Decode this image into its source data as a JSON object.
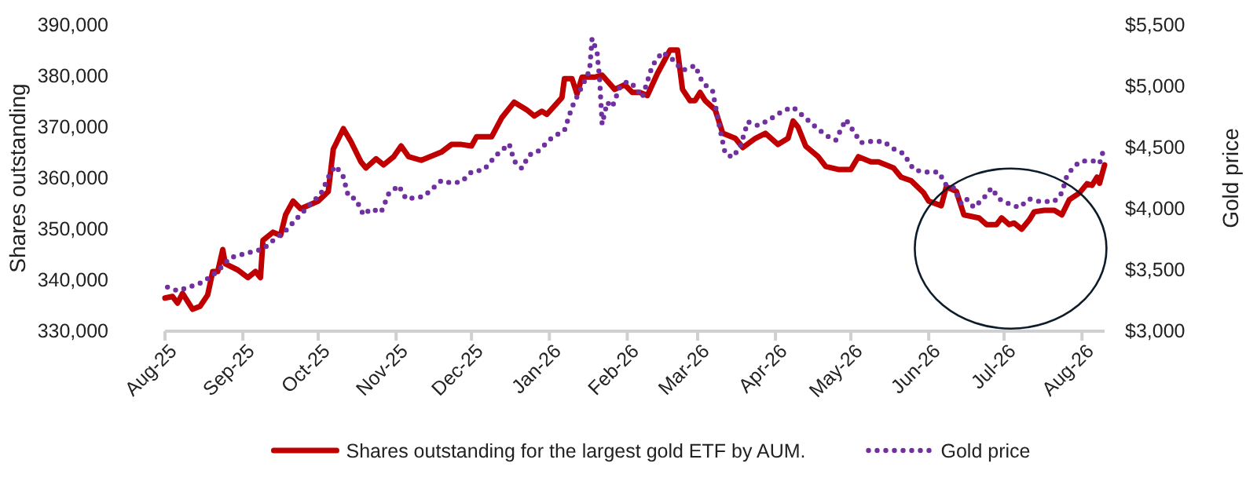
{
  "chart_data": {
    "type": "line",
    "ylabel": "Shares outstanding",
    "y2label": "Gold price",
    "xlim": [
      "2025-08-01",
      "2026-08-10"
    ],
    "xticks": [
      {
        "value": "2025-08-01",
        "label": "Aug-25"
      },
      {
        "value": "2025-09-01",
        "label": "Sep-25"
      },
      {
        "value": "2025-10-01",
        "label": "Oct-25"
      },
      {
        "value": "2025-11-01",
        "label": "Nov-25"
      },
      {
        "value": "2025-12-01",
        "label": "Dec-25"
      },
      {
        "value": "2026-01-01",
        "label": "Jan-26"
      },
      {
        "value": "2026-02-01",
        "label": "Feb-26"
      },
      {
        "value": "2026-03-01",
        "label": "Mar-26"
      },
      {
        "value": "2026-04-01",
        "label": "Apr-26"
      },
      {
        "value": "2026-05-01",
        "label": "May-26"
      },
      {
        "value": "2026-06-01",
        "label": "Jun-26"
      },
      {
        "value": "2026-07-01",
        "label": "Jul-26"
      },
      {
        "value": "2026-08-01",
        "label": "Aug-26"
      }
    ],
    "ylim": [
      330000,
      390000
    ],
    "yticks": [
      {
        "value": 330000,
        "label": "330,000"
      },
      {
        "value": 340000,
        "label": "340,000"
      },
      {
        "value": 350000,
        "label": "350,000"
      },
      {
        "value": 360000,
        "label": "360,000"
      },
      {
        "value": 370000,
        "label": "370,000"
      },
      {
        "value": 380000,
        "label": "380,000"
      },
      {
        "value": 390000,
        "label": "390,000"
      }
    ],
    "y2lim": [
      3000,
      5500
    ],
    "y2ticks": [
      {
        "value": 3000,
        "label": "$3,000"
      },
      {
        "value": 3500,
        "label": "$3,500"
      },
      {
        "value": 4000,
        "label": "$4,000"
      },
      {
        "value": 4500,
        "label": "$4,500"
      },
      {
        "value": 5000,
        "label": "$5,000"
      },
      {
        "value": 5500,
        "label": "$5,500"
      }
    ],
    "grid": false,
    "legend": "bottom",
    "series": [
      {
        "name": "Shares outstanding for the largest gold ETF by AUM.",
        "color": "#c00000",
        "line_style": "solid",
        "marker": "none",
        "x": [
          "2025-08-01",
          "2025-08-04",
          "2025-08-06",
          "2025-08-08",
          "2025-08-12",
          "2025-08-15",
          "2025-08-18",
          "2025-08-20",
          "2025-08-22",
          "2025-08-24",
          "2025-08-25",
          "2025-08-30",
          "2025-09-03",
          "2025-09-06",
          "2025-09-08",
          "2025-09-09",
          "2025-09-13",
          "2025-09-16",
          "2025-09-18",
          "2025-09-21",
          "2025-09-24",
          "2025-10-01",
          "2025-10-05",
          "2025-10-07",
          "2025-10-11",
          "2025-10-14",
          "2025-10-18",
          "2025-10-20",
          "2025-10-24",
          "2025-10-27",
          "2025-10-31",
          "2025-11-03",
          "2025-11-06",
          "2025-11-11",
          "2025-11-19",
          "2025-11-23",
          "2025-11-27",
          "2025-12-01",
          "2025-12-03",
          "2025-12-09",
          "2025-12-13",
          "2025-12-18",
          "2025-12-23",
          "2025-12-26",
          "2025-12-29",
          "2025-12-31",
          "2026-01-06",
          "2026-01-07",
          "2026-01-10",
          "2026-01-12",
          "2026-01-14",
          "2026-01-19",
          "2026-01-22",
          "2026-01-27",
          "2026-01-31",
          "2026-02-03",
          "2026-02-06",
          "2026-02-09",
          "2026-02-13",
          "2026-02-18",
          "2026-02-21",
          "2026-02-23",
          "2026-02-26",
          "2026-02-28",
          "2026-03-02",
          "2026-03-04",
          "2026-03-08",
          "2026-03-11",
          "2026-03-16",
          "2026-03-19",
          "2026-03-24",
          "2026-03-28",
          "2026-04-02",
          "2026-04-06",
          "2026-04-08",
          "2026-04-10",
          "2026-04-13",
          "2026-04-18",
          "2026-04-21",
          "2026-04-26",
          "2026-05-01",
          "2026-05-04",
          "2026-05-09",
          "2026-05-12",
          "2026-05-18",
          "2026-05-21",
          "2026-05-25",
          "2026-05-30",
          "2026-06-01",
          "2026-06-06",
          "2026-06-08",
          "2026-06-12",
          "2026-06-15",
          "2026-06-21",
          "2026-06-24",
          "2026-06-28",
          "2026-06-30",
          "2026-07-03",
          "2026-07-05",
          "2026-07-08",
          "2026-07-11",
          "2026-07-13",
          "2026-07-17",
          "2026-07-21",
          "2026-07-24",
          "2026-07-27",
          "2026-07-31",
          "2026-08-03",
          "2026-08-05",
          "2026-08-07",
          "2026-08-08",
          "2026-08-10"
        ],
        "values": [
          336500,
          336800,
          335500,
          337400,
          334300,
          334900,
          337100,
          341700,
          341700,
          346000,
          343200,
          342000,
          340500,
          341700,
          340500,
          347800,
          349400,
          348800,
          352800,
          355500,
          354000,
          355500,
          357400,
          365700,
          369700,
          367200,
          363200,
          362000,
          363800,
          362600,
          364200,
          366300,
          364200,
          363500,
          365100,
          366600,
          366600,
          366300,
          368100,
          368100,
          371800,
          374900,
          373400,
          372200,
          373100,
          372500,
          375800,
          379500,
          379500,
          376500,
          379800,
          379800,
          380200,
          377400,
          378300,
          376800,
          376800,
          376200,
          380500,
          385100,
          385100,
          377400,
          375200,
          375200,
          376800,
          375200,
          373400,
          368800,
          367800,
          366000,
          367800,
          368800,
          366600,
          367800,
          371200,
          370000,
          366300,
          364200,
          362300,
          361700,
          361700,
          364200,
          363200,
          363200,
          362000,
          360200,
          359500,
          357100,
          355500,
          354600,
          358300,
          357400,
          352800,
          352200,
          350900,
          350900,
          352200,
          350900,
          351200,
          350000,
          351800,
          353400,
          353700,
          353700,
          352800,
          355800,
          357100,
          358900,
          358600,
          360200,
          359000,
          362600
        ]
      },
      {
        "name": "Gold price",
        "color": "#7030a0",
        "axis": "y2",
        "line_style": "dotted",
        "marker": "none",
        "x": [
          "2025-08-02",
          "2025-08-06",
          "2025-08-12",
          "2025-08-16",
          "2025-08-22",
          "2025-08-27",
          "2025-09-03",
          "2025-09-09",
          "2025-09-13",
          "2025-09-18",
          "2025-09-22",
          "2025-09-28",
          "2025-10-02",
          "2025-10-06",
          "2025-10-08",
          "2025-10-11",
          "2025-10-13",
          "2025-10-16",
          "2025-10-19",
          "2025-10-22",
          "2025-10-26",
          "2025-10-29",
          "2025-11-02",
          "2025-11-05",
          "2025-11-12",
          "2025-11-19",
          "2025-11-23",
          "2025-11-27",
          "2025-12-01",
          "2025-12-06",
          "2025-12-11",
          "2025-12-16",
          "2025-12-18",
          "2025-12-21",
          "2025-12-24",
          "2025-12-27",
          "2026-01-02",
          "2026-01-07",
          "2026-01-10",
          "2026-01-14",
          "2026-01-17",
          "2026-01-18",
          "2026-01-20",
          "2026-01-21",
          "2026-01-22",
          "2026-01-24",
          "2026-01-26",
          "2026-01-29",
          "2026-02-01",
          "2026-02-04",
          "2026-02-07",
          "2026-02-11",
          "2026-02-15",
          "2026-02-19",
          "2026-02-23",
          "2026-02-28",
          "2026-03-03",
          "2026-03-07",
          "2026-03-10",
          "2026-03-12",
          "2026-03-15",
          "2026-03-18",
          "2026-03-21",
          "2026-03-25",
          "2026-03-29",
          "2026-04-04",
          "2026-04-08",
          "2026-04-13",
          "2026-04-18",
          "2026-04-22",
          "2026-04-25",
          "2026-04-29",
          "2026-05-05",
          "2026-05-09",
          "2026-05-14",
          "2026-05-18",
          "2026-05-22",
          "2026-05-26",
          "2026-05-30",
          "2026-06-02",
          "2026-06-05",
          "2026-06-08",
          "2026-06-11",
          "2026-06-14",
          "2026-06-16",
          "2026-06-19",
          "2026-06-23",
          "2026-06-26",
          "2026-06-29",
          "2026-07-03",
          "2026-07-07",
          "2026-07-11",
          "2026-07-15",
          "2026-07-18",
          "2026-07-21",
          "2026-07-24",
          "2026-07-26",
          "2026-07-29",
          "2026-08-01",
          "2026-08-06",
          "2026-08-08",
          "2026-08-10"
        ],
        "values": [
          3360,
          3330,
          3370,
          3400,
          3490,
          3600,
          3640,
          3670,
          3740,
          3820,
          3910,
          4040,
          4120,
          4300,
          4350,
          4260,
          4100,
          4080,
          3950,
          4000,
          3970,
          4120,
          4190,
          4080,
          4100,
          4230,
          4210,
          4220,
          4300,
          4320,
          4440,
          4530,
          4390,
          4330,
          4440,
          4460,
          4580,
          4640,
          4830,
          5000,
          5130,
          5390,
          5280,
          5060,
          4690,
          4870,
          4830,
          4990,
          5040,
          5000,
          4910,
          5170,
          5280,
          5220,
          5130,
          5170,
          5030,
          4960,
          4640,
          4450,
          4420,
          4510,
          4710,
          4680,
          4720,
          4800,
          4830,
          4740,
          4650,
          4590,
          4560,
          4730,
          4540,
          4550,
          4550,
          4490,
          4450,
          4320,
          4300,
          4300,
          4300,
          4190,
          4170,
          4040,
          4080,
          4010,
          4090,
          4170,
          4080,
          4040,
          4010,
          4080,
          4060,
          4060,
          4060,
          4130,
          4270,
          4350,
          4390,
          4390,
          4370,
          4510
        ]
      }
    ]
  }
}
